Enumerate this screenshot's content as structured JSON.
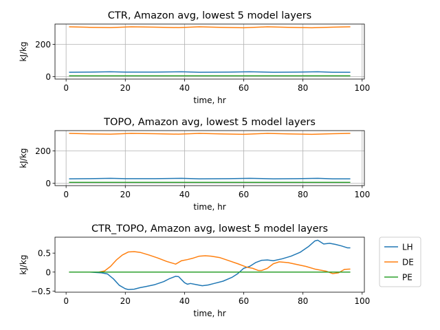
{
  "colors": {
    "LH": "#1f77b4",
    "DE": "#ff7f0e",
    "PE": "#2ca02c"
  },
  "legend": {
    "placement": "right of bottom panel",
    "entries": [
      "LH",
      "DE",
      "PE"
    ]
  },
  "chart_data": [
    {
      "type": "line",
      "title": "CTR, Amazon avg, lowest 5 model layers",
      "xlabel": "time, hr",
      "ylabel": "kJ/kg",
      "xlim": [
        -3.75,
        100.75
      ],
      "ylim": [
        -15,
        325
      ],
      "xticks": [
        0,
        20,
        40,
        60,
        80,
        100
      ],
      "yticks": [
        0,
        200
      ],
      "grid": true,
      "series": [
        {
          "name": "LH",
          "x": [
            1,
            8,
            15,
            20,
            30,
            39,
            45,
            55,
            62,
            70,
            78,
            85,
            90,
            96
          ],
          "y": [
            27,
            28,
            30,
            28,
            28,
            30,
            27,
            28,
            30,
            27,
            28,
            30,
            27,
            27
          ]
        },
        {
          "name": "DE",
          "x": [
            1,
            8,
            15,
            22,
            30,
            38,
            45,
            52,
            60,
            68,
            75,
            83,
            90,
            96
          ],
          "y": [
            308,
            305,
            303,
            308,
            306,
            303,
            308,
            305,
            302,
            308,
            305,
            302,
            306,
            308
          ]
        },
        {
          "name": "PE",
          "x": [
            1,
            20,
            40,
            60,
            80,
            96
          ],
          "y": [
            5,
            5,
            5,
            5,
            5,
            5
          ]
        }
      ]
    },
    {
      "type": "line",
      "title": "TOPO, Amazon avg, lowest 5 model layers",
      "xlabel": "time, hr",
      "ylabel": "kJ/kg",
      "xlim": [
        -3.75,
        100.75
      ],
      "ylim": [
        -15,
        325
      ],
      "xticks": [
        0,
        20,
        40,
        60,
        80,
        100
      ],
      "yticks": [
        0,
        200
      ],
      "grid": true,
      "series": [
        {
          "name": "LH",
          "x": [
            1,
            8,
            15,
            20,
            30,
            39,
            45,
            55,
            62,
            70,
            78,
            85,
            90,
            96
          ],
          "y": [
            27,
            28,
            30,
            28,
            28,
            30,
            27,
            28,
            30,
            27,
            28,
            30,
            27,
            27
          ]
        },
        {
          "name": "DE",
          "x": [
            1,
            8,
            15,
            22,
            30,
            38,
            45,
            52,
            60,
            68,
            75,
            83,
            90,
            96
          ],
          "y": [
            308,
            305,
            303,
            308,
            306,
            303,
            308,
            305,
            302,
            308,
            305,
            302,
            306,
            308
          ]
        },
        {
          "name": "PE",
          "x": [
            1,
            20,
            40,
            60,
            80,
            96
          ],
          "y": [
            5,
            5,
            5,
            5,
            5,
            5
          ]
        }
      ]
    },
    {
      "type": "line",
      "title": "CTR_TOPO, Amazon avg, lowest 5 model layers",
      "xlabel": "time, hr",
      "ylabel": "kJ/kg",
      "xlim": [
        -3.75,
        100.75
      ],
      "ylim": [
        -0.53,
        0.92
      ],
      "xticks": [
        0,
        20,
        40,
        60,
        80,
        100
      ],
      "yticks": [
        -0.5,
        0.0,
        0.5
      ],
      "grid": false,
      "series": [
        {
          "name": "LH",
          "x": [
            1,
            4,
            8,
            12,
            14,
            16,
            18,
            20,
            21,
            23,
            25,
            27,
            30,
            33,
            35,
            37,
            38,
            39,
            40,
            41,
            42,
            44,
            46,
            48,
            50,
            53,
            56,
            58,
            60,
            62,
            64,
            66,
            68,
            70,
            73,
            76,
            79,
            82,
            84,
            85,
            87,
            89,
            91,
            93,
            95,
            96
          ],
          "y": [
            0,
            0,
            0,
            -0.02,
            -0.05,
            -0.18,
            -0.35,
            -0.44,
            -0.46,
            -0.45,
            -0.41,
            -0.38,
            -0.33,
            -0.25,
            -0.17,
            -0.11,
            -0.12,
            -0.2,
            -0.28,
            -0.32,
            -0.3,
            -0.33,
            -0.36,
            -0.34,
            -0.3,
            -0.24,
            -0.14,
            -0.04,
            0.1,
            0.15,
            0.25,
            0.31,
            0.32,
            0.3,
            0.35,
            0.42,
            0.52,
            0.68,
            0.82,
            0.84,
            0.74,
            0.76,
            0.73,
            0.69,
            0.64,
            0.64
          ]
        },
        {
          "name": "DE",
          "x": [
            1,
            4,
            8,
            11,
            13,
            15,
            17,
            19,
            21,
            23,
            25,
            28,
            31,
            34,
            37,
            39,
            41,
            43,
            45,
            47,
            49,
            52,
            55,
            58,
            61,
            63,
            65,
            66,
            68,
            70,
            72,
            75,
            78,
            81,
            84,
            86,
            88,
            90,
            92,
            94,
            96
          ],
          "y": [
            0,
            0,
            0,
            0,
            0.03,
            0.15,
            0.32,
            0.45,
            0.53,
            0.54,
            0.52,
            0.45,
            0.37,
            0.28,
            0.21,
            0.3,
            0.33,
            0.37,
            0.42,
            0.43,
            0.42,
            0.38,
            0.3,
            0.22,
            0.13,
            0.1,
            0.04,
            0.04,
            0.1,
            0.22,
            0.27,
            0.25,
            0.2,
            0.15,
            0.08,
            0.05,
            0.02,
            -0.04,
            -0.02,
            0.07,
            0.08
          ]
        },
        {
          "name": "PE",
          "x": [
            1,
            20,
            40,
            60,
            80,
            96
          ],
          "y": [
            0,
            0,
            0,
            0,
            0,
            0
          ]
        }
      ]
    }
  ]
}
